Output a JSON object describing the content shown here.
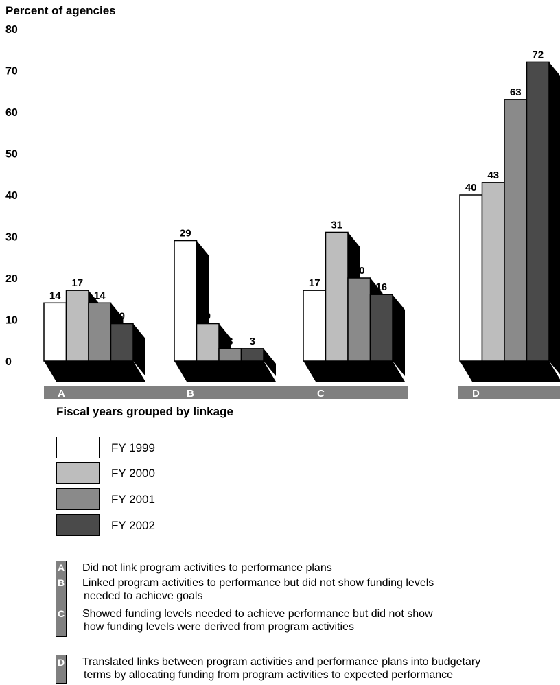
{
  "colors": {
    "fy1999": "#ffffff",
    "fy2000": "#bdbdbd",
    "fy2001": "#8a8a8a",
    "fy2002": "#4a4a4a",
    "shadow": "#000000",
    "band": "#808080"
  },
  "chart_data": {
    "type": "bar",
    "title": "",
    "ylabel": "Percent of agencies",
    "xlabel": "Fiscal years grouped by linkage",
    "ylim": [
      0,
      80
    ],
    "yticks": [
      "0",
      "10",
      "20",
      "30",
      "40",
      "50",
      "60",
      "70",
      "80"
    ],
    "categories": [
      "A",
      "B",
      "C",
      "D"
    ],
    "series": [
      {
        "name": "FY 1999",
        "values": [
          14,
          29,
          17,
          40
        ]
      },
      {
        "name": "FY 2000",
        "values": [
          17,
          9,
          31,
          43
        ]
      },
      {
        "name": "FY 2001",
        "values": [
          14,
          3,
          20,
          63
        ]
      },
      {
        "name": "FY 2002",
        "values": [
          9,
          3,
          16,
          72
        ]
      }
    ],
    "grid": false,
    "legend_position": "below"
  },
  "legend": [
    {
      "label": "FY 1999",
      "color_key": "fy1999"
    },
    {
      "label": "FY 2000",
      "color_key": "fy2000"
    },
    {
      "label": "FY 2001",
      "color_key": "fy2001"
    },
    {
      "label": "FY 2002",
      "color_key": "fy2002"
    }
  ],
  "key": [
    {
      "letter": "A",
      "lines": [
        "Did not link program activities to performance plans"
      ]
    },
    {
      "letter": "B",
      "lines": [
        "Linked program activities to performance but did not show funding levels",
        "needed to achieve goals"
      ]
    },
    {
      "letter": "C",
      "lines": [
        "Showed funding levels needed to achieve performance but did not show",
        "how funding levels were derived from program activities"
      ]
    },
    {
      "letter": "D",
      "lines": [
        "Translated links between program activities and performance plans into budgetary",
        "terms by allocating funding from program activities to expected performance"
      ]
    }
  ]
}
